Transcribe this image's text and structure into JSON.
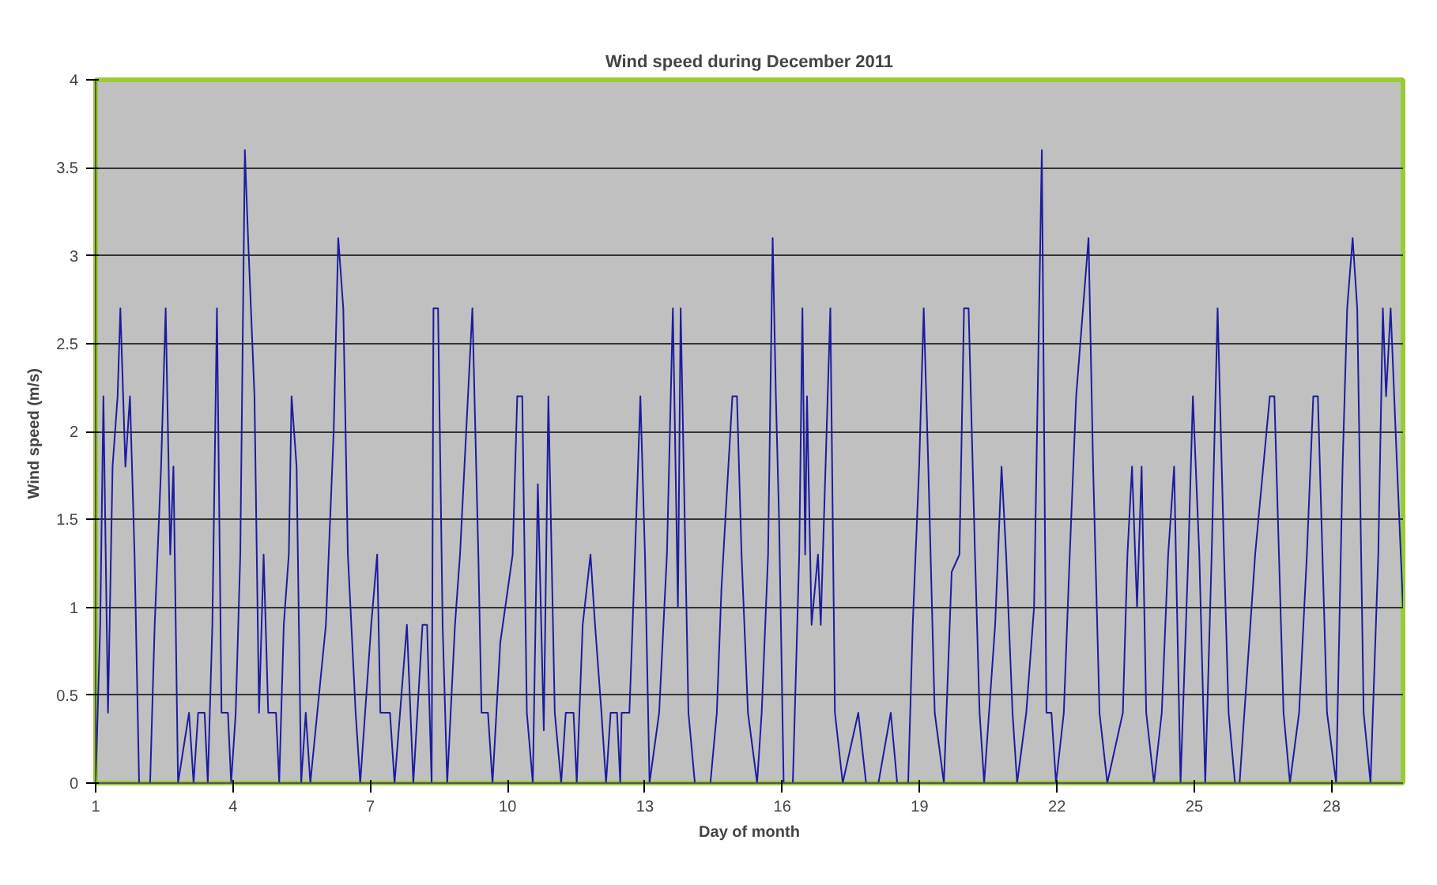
{
  "chart_data": {
    "type": "line",
    "title": "Wind speed during December 2011",
    "xlabel": "Day of month",
    "ylabel": "Wind speed  (m/s)",
    "xlim": [
      1,
      29.56
    ],
    "xticks": [
      1,
      4,
      7,
      10,
      13,
      16,
      19,
      22,
      25,
      28
    ],
    "ylim": [
      0,
      4
    ],
    "yticks": [
      0,
      0.5,
      1,
      1.5,
      2,
      2.5,
      3,
      3.5,
      4
    ],
    "grid": "y",
    "series": [
      {
        "color": "#1c1ca0",
        "x": [
          1.0,
          1.1,
          1.17,
          1.27,
          1.37,
          1.48,
          1.54,
          1.65,
          1.75,
          1.85,
          1.95,
          2.19,
          2.29,
          2.43,
          2.53,
          2.63,
          2.7,
          2.8,
          3.04,
          3.14,
          3.24,
          3.38,
          3.45,
          3.55,
          3.65,
          3.75,
          3.89,
          3.96,
          4.06,
          4.16,
          4.26,
          4.33,
          4.47,
          4.57,
          4.67,
          4.77,
          4.94,
          5.01,
          5.11,
          5.22,
          5.28,
          5.39,
          5.49,
          5.59,
          5.69,
          6.03,
          6.2,
          6.3,
          6.41,
          6.51,
          6.68,
          6.78,
          7.02,
          7.15,
          7.22,
          7.43,
          7.53,
          7.8,
          7.94,
          8.14,
          8.24,
          8.34,
          8.38,
          8.48,
          8.58,
          8.68,
          8.85,
          8.96,
          9.23,
          9.36,
          9.43,
          9.57,
          9.67,
          9.84,
          10.11,
          10.21,
          10.32,
          10.42,
          10.55,
          10.66,
          10.79,
          10.89,
          11.03,
          11.17,
          11.27,
          11.44,
          11.51,
          11.64,
          11.81,
          11.91,
          12.05,
          12.15,
          12.25,
          12.39,
          12.46,
          12.49,
          12.66,
          12.73,
          12.9,
          13.0,
          13.1,
          13.31,
          13.48,
          13.61,
          13.72,
          13.78,
          13.95,
          14.09,
          14.43,
          14.57,
          14.67,
          14.8,
          14.91,
          15.01,
          15.11,
          15.25,
          15.45,
          15.55,
          15.69,
          15.79,
          15.86,
          15.93,
          16.03,
          16.23,
          16.37,
          16.44,
          16.5,
          16.54,
          16.64,
          16.78,
          16.84,
          17.05,
          17.15,
          17.32,
          17.66,
          17.83,
          18.1,
          18.37,
          18.51,
          18.75,
          18.85,
          18.99,
          19.09,
          19.19,
          19.33,
          19.53,
          19.7,
          19.87,
          19.97,
          20.07,
          20.21,
          20.31,
          20.41,
          20.65,
          20.79,
          20.89,
          21.03,
          21.13,
          21.33,
          21.5,
          21.67,
          21.77,
          21.88,
          21.98,
          22.15,
          22.28,
          22.42,
          22.69,
          22.79,
          22.93,
          23.1,
          23.44,
          23.54,
          23.64,
          23.75,
          23.85,
          23.95,
          24.12,
          24.29,
          24.43,
          24.56,
          24.7,
          24.87,
          24.97,
          25.11,
          25.24,
          25.38,
          25.51,
          25.65,
          25.75,
          25.89,
          25.99,
          26.33,
          26.65,
          26.75,
          26.85,
          26.95,
          27.09,
          27.29,
          27.46,
          27.6,
          27.7,
          27.8,
          27.9,
          28.1,
          28.24,
          28.34,
          28.46,
          28.56,
          28.7,
          28.85,
          29.02,
          29.12,
          29.19,
          29.29,
          29.43,
          29.56
        ],
        "values": [
          0,
          0.9,
          2.2,
          0.4,
          1.8,
          2.2,
          2.7,
          1.8,
          2.2,
          1.3,
          0,
          0,
          0.9,
          1.8,
          2.7,
          1.3,
          1.8,
          0,
          0.4,
          0,
          0.4,
          0.4,
          0,
          0.9,
          2.7,
          0.4,
          0.4,
          0,
          0.4,
          1.3,
          3.6,
          3.1,
          2.2,
          0.4,
          1.3,
          0.4,
          0.4,
          0,
          0.9,
          1.3,
          2.2,
          1.8,
          0,
          0.4,
          0,
          0.9,
          2.0,
          3.1,
          2.7,
          1.3,
          0.4,
          0,
          0.9,
          1.3,
          0.4,
          0.4,
          0,
          0.9,
          0,
          0.9,
          0.9,
          0,
          2.7,
          2.7,
          0.9,
          0,
          0.9,
          1.3,
          2.7,
          1.3,
          0.4,
          0.4,
          0,
          0.8,
          1.3,
          2.2,
          2.2,
          0.4,
          0,
          1.7,
          0.3,
          2.2,
          0.4,
          0,
          0.4,
          0.4,
          0,
          0.9,
          1.3,
          0.9,
          0.4,
          0,
          0.4,
          0.4,
          0,
          0.4,
          0.4,
          0.9,
          2.2,
          1.3,
          0,
          0.4,
          1.3,
          2.7,
          1.0,
          2.7,
          0.4,
          0,
          0,
          0.4,
          1.1,
          1.7,
          2.2,
          2.2,
          1.3,
          0.4,
          0,
          0.4,
          1.3,
          3.1,
          2.2,
          1.5,
          0,
          0,
          1.3,
          2.7,
          1.3,
          2.2,
          0.9,
          1.3,
          0.9,
          2.7,
          0.4,
          0,
          0.4,
          0,
          0,
          0.4,
          0,
          0,
          0.9,
          1.8,
          2.7,
          1.8,
          0.4,
          0,
          1.2,
          1.3,
          2.7,
          2.7,
          1.3,
          0.4,
          0,
          0.9,
          1.8,
          1.3,
          0.4,
          0,
          0.4,
          1.0,
          3.6,
          0.4,
          0.4,
          0,
          0.4,
          1.3,
          2.2,
          3.1,
          1.8,
          0.4,
          0,
          0.4,
          1.3,
          1.8,
          1.0,
          1.8,
          0.4,
          0,
          0.4,
          1.3,
          1.8,
          0,
          1.3,
          2.2,
          1.3,
          0,
          1.3,
          2.7,
          1.3,
          0.4,
          0,
          0,
          1.3,
          2.2,
          2.2,
          1.3,
          0.4,
          0,
          0.4,
          1.3,
          2.2,
          2.2,
          1.3,
          0.4,
          0,
          1.8,
          2.7,
          3.1,
          2.7,
          0.4,
          0,
          1.3,
          2.7,
          2.2,
          2.7,
          1.8,
          1.0
        ]
      }
    ]
  }
}
